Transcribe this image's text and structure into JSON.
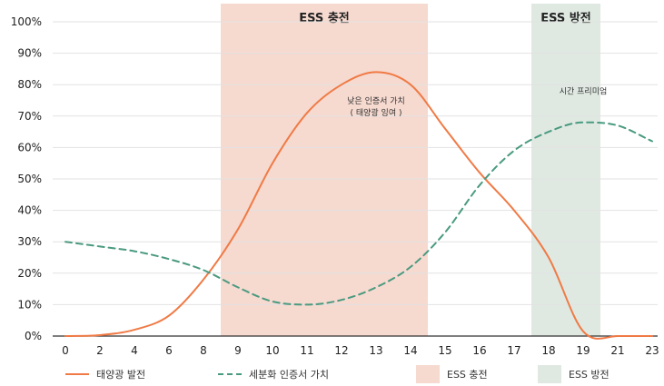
{
  "chart_data": {
    "type": "line",
    "title": "",
    "xlabel": "",
    "ylabel": "",
    "x_ticks": [
      "0",
      "2",
      "4",
      "6",
      "8",
      "9",
      "10",
      "11",
      "12",
      "13",
      "14",
      "15",
      "16",
      "17",
      "18",
      "19",
      "21",
      "23"
    ],
    "y_ticks": [
      "0%",
      "10%",
      "20%",
      "30%",
      "40%",
      "50%",
      "60%",
      "70%",
      "80%",
      "90%",
      "100%"
    ],
    "ylim": [
      0,
      100
    ],
    "grid": "horizontal",
    "series": [
      {
        "name": "태양광 발전",
        "color": "#f07a45",
        "style": "solid",
        "points": [
          {
            "x": "0",
            "y": 0
          },
          {
            "x": "2",
            "y": 0.3
          },
          {
            "x": "4",
            "y": 2
          },
          {
            "x": "6",
            "y": 6.5
          },
          {
            "x": "8",
            "y": 18
          },
          {
            "x": "9",
            "y": 34
          },
          {
            "x": "10",
            "y": 55
          },
          {
            "x": "11",
            "y": 71
          },
          {
            "x": "12",
            "y": 80
          },
          {
            "x": "13",
            "y": 84
          },
          {
            "x": "14",
            "y": 80
          },
          {
            "x": "15",
            "y": 66
          },
          {
            "x": "16",
            "y": 52
          },
          {
            "x": "17",
            "y": 40
          },
          {
            "x": "18",
            "y": 25
          },
          {
            "x": "19",
            "y": 1.5
          },
          {
            "x": "21",
            "y": 0
          },
          {
            "x": "23",
            "y": 0
          }
        ]
      },
      {
        "name": "세분화 인증서 가치",
        "color": "#4a9a80",
        "style": "dashed",
        "points": [
          {
            "x": "0",
            "y": 30
          },
          {
            "x": "2",
            "y": 28.5
          },
          {
            "x": "4",
            "y": 27
          },
          {
            "x": "6",
            "y": 24.5
          },
          {
            "x": "8",
            "y": 21
          },
          {
            "x": "9",
            "y": 15.5
          },
          {
            "x": "10",
            "y": 11
          },
          {
            "x": "11",
            "y": 10
          },
          {
            "x": "12",
            "y": 11.5
          },
          {
            "x": "13",
            "y": 15.5
          },
          {
            "x": "14",
            "y": 22
          },
          {
            "x": "15",
            "y": 33
          },
          {
            "x": "16",
            "y": 48
          },
          {
            "x": "17",
            "y": 59
          },
          {
            "x": "18",
            "y": 65
          },
          {
            "x": "19",
            "y": 68
          },
          {
            "x": "21",
            "y": 67
          },
          {
            "x": "23",
            "y": 62
          }
        ]
      }
    ],
    "bands": [
      {
        "label": "ESS 충전",
        "from": "9",
        "to": "15",
        "color": "#f6d9cf"
      },
      {
        "label": "ESS 방전",
        "from": "18",
        "to": "21",
        "color": "#dfe9e2"
      }
    ],
    "annotations": [
      {
        "lines": [
          "낮은 인증서 가치",
          "( 태양광 잉여 )"
        ],
        "x": "13",
        "y": 74
      },
      {
        "text": "시간 프리미엄",
        "x": "19",
        "y": 77
      }
    ],
    "legend": {
      "placement": "bottom",
      "items": [
        "태양광 발전",
        "세분화 인증서 가치",
        "ESS 충전",
        "ESS 방전"
      ]
    }
  }
}
